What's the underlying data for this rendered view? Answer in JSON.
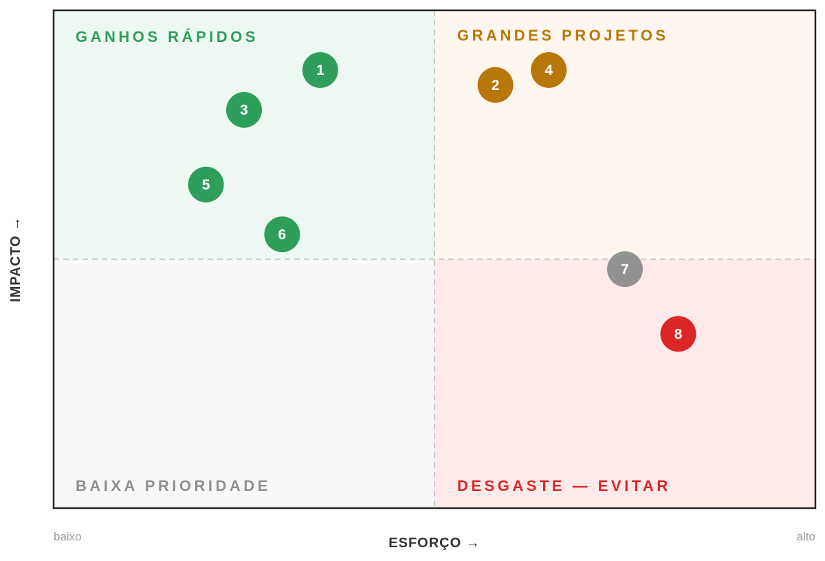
{
  "chart_data": {
    "type": "scatter",
    "title": "",
    "xlabel": "ESFORÇO →",
    "ylabel": "IMPACTO →",
    "x_end_labels": {
      "low": "baixo",
      "high": "alto"
    },
    "xlim": [
      0,
      10
    ],
    "ylim": [
      0,
      10
    ],
    "midline_x": 5,
    "midline_y": 5,
    "grid": false,
    "quadrants": [
      {
        "name": "top-left",
        "label": "GANHOS RÁPIDOS",
        "fill": "#eef8f2",
        "label_color": "#2e9e5b"
      },
      {
        "name": "top-right",
        "label": "GRANDES PROJETOS",
        "fill": "#fff7ef",
        "label_color": "#b8770b"
      },
      {
        "name": "bottom-left",
        "label": "BAIXA PRIORIDADE",
        "fill": "#f8f8f8",
        "label_color": "#8f8f8f"
      },
      {
        "name": "bottom-right",
        "label": "DESGASTE — EVITAR",
        "fill": "#ffeaea",
        "label_color": "#dc2626"
      }
    ],
    "points": [
      {
        "label": "1",
        "x": 3.5,
        "y": 8.8,
        "color": "#2e9e5b"
      },
      {
        "label": "2",
        "x": 5.8,
        "y": 8.5,
        "color": "#b8770b"
      },
      {
        "label": "3",
        "x": 2.5,
        "y": 8.0,
        "color": "#2e9e5b"
      },
      {
        "label": "4",
        "x": 6.5,
        "y": 8.8,
        "color": "#b8770b"
      },
      {
        "label": "5",
        "x": 2.0,
        "y": 6.5,
        "color": "#2e9e5b"
      },
      {
        "label": "6",
        "x": 3.0,
        "y": 5.5,
        "color": "#2e9e5b"
      },
      {
        "label": "7",
        "x": 7.5,
        "y": 4.8,
        "color": "#929292"
      },
      {
        "label": "8",
        "x": 8.2,
        "y": 3.5,
        "color": "#dc2626"
      }
    ]
  }
}
